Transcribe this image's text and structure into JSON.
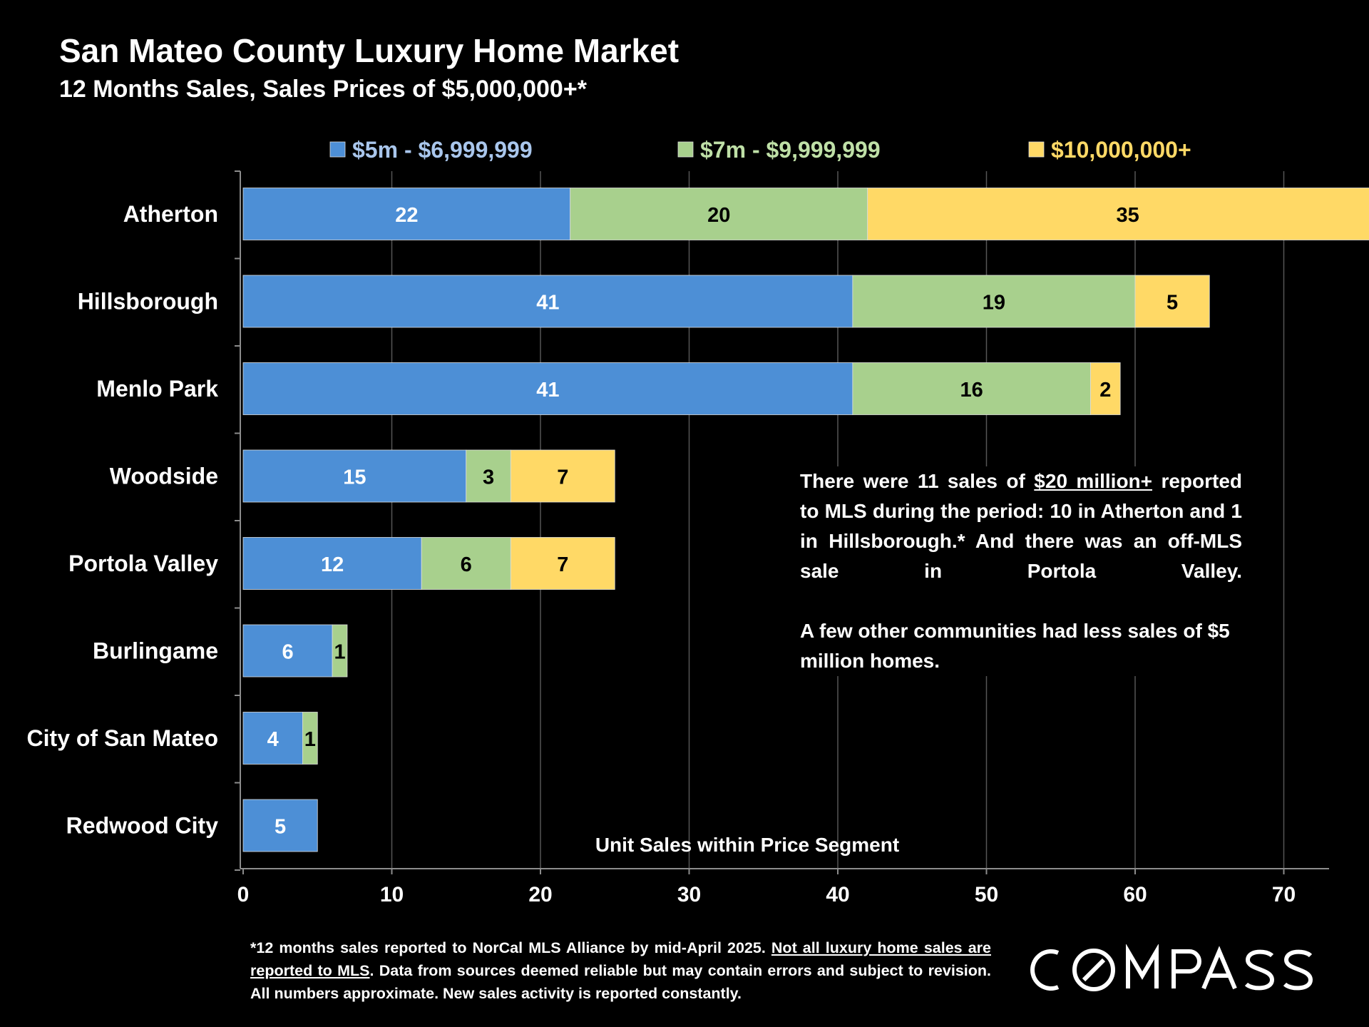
{
  "header": {
    "title": "San Mateo County Luxury Home Market",
    "subtitle": "12 Months Sales, Sales Prices of $5,000,000+*"
  },
  "annotation": {
    "part1": "There were 11 sales of",
    "part2": "$20 million+",
    "part3": "reported to MLS during the period: 10 in Atherton and 1 in Hillsborough.* And there was an off-MLS sale in Portola Valley.",
    "para2": "A few other communities had less sales of $5 million homes."
  },
  "footnote": {
    "part1": "*12 months sales reported to NorCal MLS Alliance by mid-April 2025.",
    "part2": "Not all luxury home sales are reported to MLS",
    "part3": ". Data from sources deemed reliable but may contain errors and subject to revision. All numbers approximate. New sales activity is reported constantly."
  },
  "brand": {
    "logo_text": "COMPASS"
  },
  "colors": {
    "background": "#000000",
    "series": [
      "#4d8fd6",
      "#a8d08d",
      "#ffd966"
    ],
    "legend_text": [
      "#a9c6ec",
      "#bfe0a7",
      "#ffd966"
    ]
  },
  "chart_data": {
    "type": "bar",
    "orientation": "horizontal",
    "stacked": true,
    "categories": [
      "Atherton",
      "Hillsborough",
      "Menlo Park",
      "Woodside",
      "Portola Valley",
      "Burlingame",
      "City of San Mateo",
      "Redwood City"
    ],
    "series": [
      {
        "name": "$5m - $6,999,999",
        "values": [
          22,
          41,
          41,
          15,
          12,
          6,
          4,
          5
        ]
      },
      {
        "name": "$7m - $9,999,999",
        "values": [
          20,
          19,
          16,
          3,
          6,
          1,
          1,
          0
        ]
      },
      {
        "name": "$10,000,000+",
        "values": [
          35,
          5,
          2,
          7,
          7,
          0,
          0,
          0
        ]
      }
    ],
    "xlabel": "Unit Sales within Price Segment",
    "xlim": [
      0,
      73
    ],
    "xticks": [
      0,
      10,
      20,
      30,
      40,
      50,
      60,
      70
    ],
    "grid": true,
    "legend_position": "top",
    "data_labels": true
  }
}
